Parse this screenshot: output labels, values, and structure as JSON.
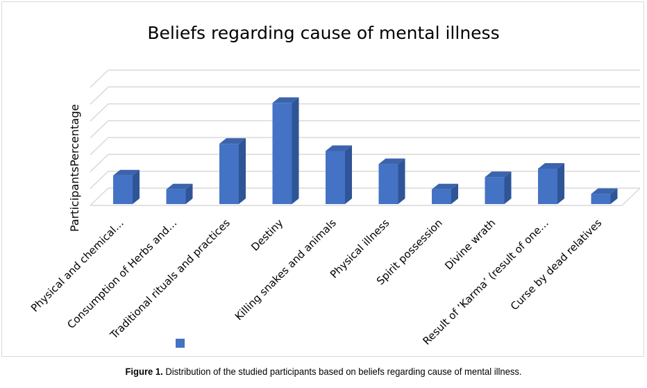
{
  "chart_data": {
    "type": "bar",
    "title": "Beliefs regarding cause of mental illness",
    "ylabel": "ParticipantsPercentage",
    "xlabel": "",
    "categories": [
      "Physical and chemical…",
      "Consumption of Herbs and…",
      "Traditional rituals and practices",
      "Destiny",
      "Killing snakes and animals",
      "Physical illness",
      "Spirit possession",
      "Divine wrath",
      "Result of ‘Karma’ (result of one…",
      "Curse by dead relatives"
    ],
    "values": [
      6.8,
      3.5,
      14.3,
      24.0,
      12.6,
      9.5,
      3.5,
      6.4,
      8.4,
      2.4
    ],
    "ylim": [
      0,
      28
    ],
    "grid": true,
    "bar_color": "#4472c4",
    "legend": {
      "placement": "bottom-left",
      "entries": [
        ""
      ]
    }
  },
  "caption": {
    "label": "Figure 1.",
    "text": " Distribution of the studied participants based on beliefs regarding cause of mental illness."
  }
}
